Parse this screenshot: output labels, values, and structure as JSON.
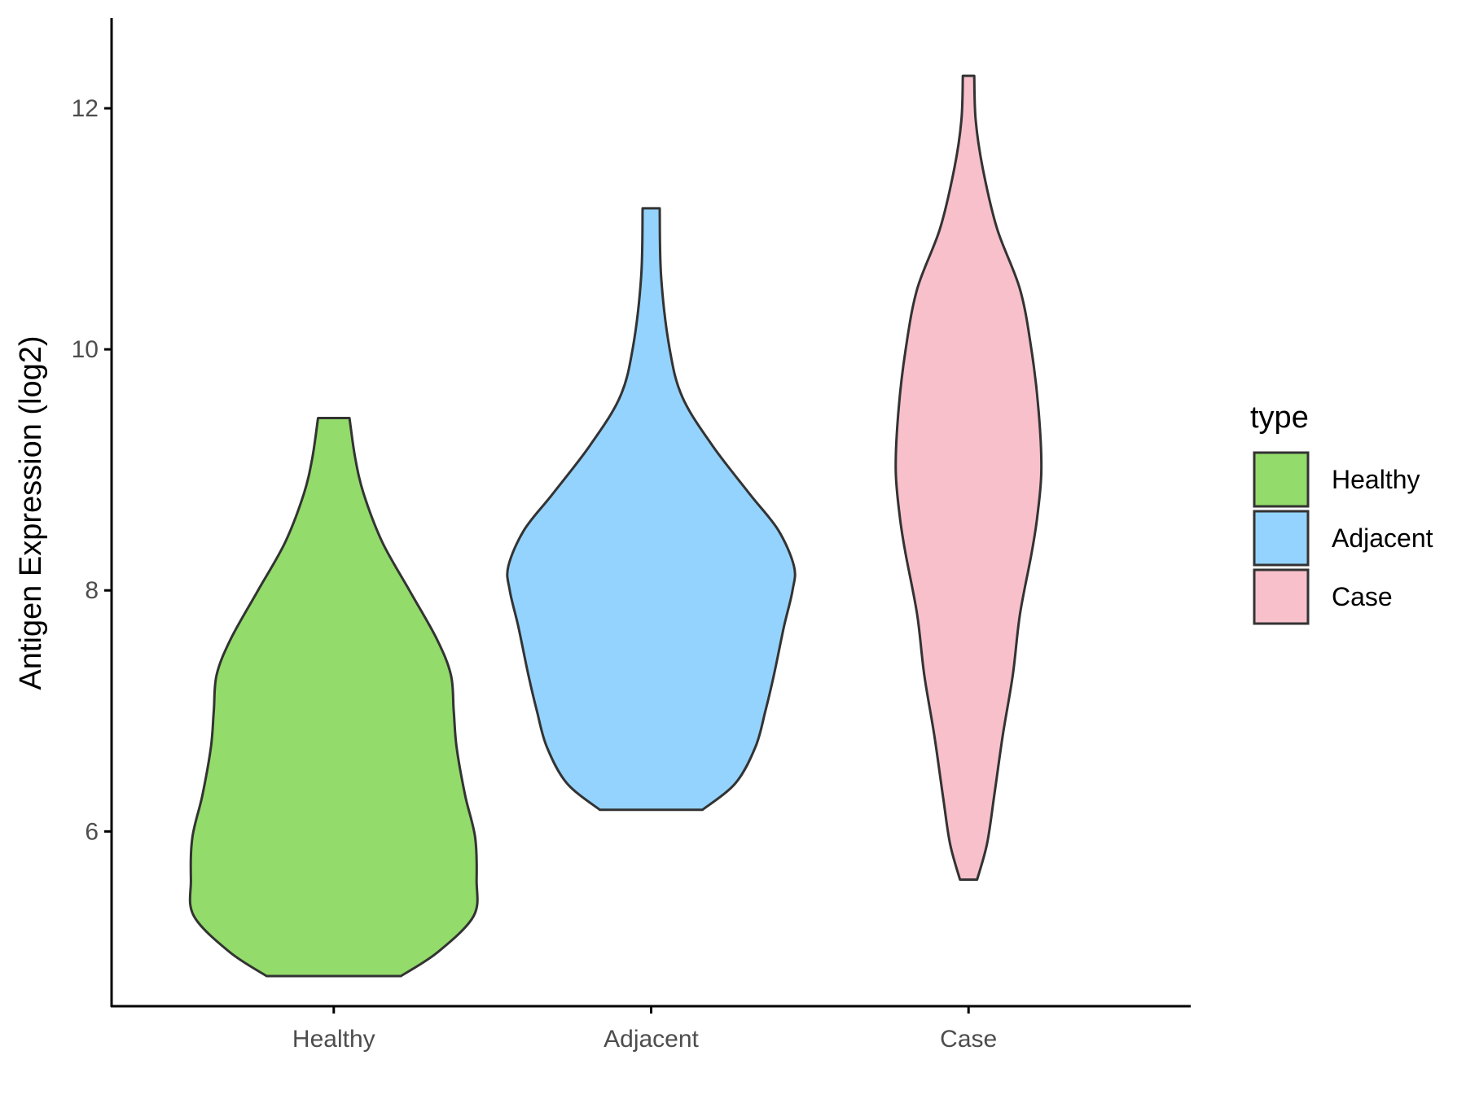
{
  "chart_data": {
    "type": "violin",
    "ylabel": "Antigen Expression (log2)",
    "xlabel": "",
    "categories": [
      "Healthy",
      "Adjacent",
      "Case"
    ],
    "y_ticks": [
      6,
      8,
      10,
      12
    ],
    "ylim": [
      4.55,
      12.75
    ],
    "grid": false,
    "legend": {
      "title": "type",
      "position": "right",
      "entries": [
        "Healthy",
        "Adjacent",
        "Case"
      ]
    },
    "colors": {
      "Healthy": "#93db6a",
      "Adjacent": "#94d3fd",
      "Case": "#f7c0cb",
      "outline": "#333333",
      "axis": "#000000"
    },
    "series": [
      {
        "category": "Healthy",
        "min": 4.8,
        "max": 9.43,
        "density": [
          [
            4.8,
            0.47
          ],
          [
            5.0,
            0.73
          ],
          [
            5.3,
            0.98
          ],
          [
            5.6,
            1.0
          ],
          [
            5.95,
            0.99
          ],
          [
            6.3,
            0.92
          ],
          [
            6.7,
            0.86
          ],
          [
            7.0,
            0.84
          ],
          [
            7.3,
            0.82
          ],
          [
            7.6,
            0.72
          ],
          [
            8.0,
            0.53
          ],
          [
            8.4,
            0.34
          ],
          [
            8.8,
            0.21
          ],
          [
            9.1,
            0.15
          ],
          [
            9.43,
            0.11
          ]
        ]
      },
      {
        "category": "Adjacent",
        "min": 6.18,
        "max": 11.17,
        "density": [
          [
            6.18,
            0.36
          ],
          [
            6.4,
            0.59
          ],
          [
            6.7,
            0.73
          ],
          [
            7.0,
            0.8
          ],
          [
            7.3,
            0.86
          ],
          [
            7.7,
            0.93
          ],
          [
            8.0,
            0.99
          ],
          [
            8.2,
            1.0
          ],
          [
            8.5,
            0.89
          ],
          [
            8.8,
            0.69
          ],
          [
            9.2,
            0.43
          ],
          [
            9.6,
            0.22
          ],
          [
            10.0,
            0.13
          ],
          [
            10.6,
            0.07
          ],
          [
            11.17,
            0.06
          ]
        ]
      },
      {
        "category": "Case",
        "min": 5.6,
        "max": 12.27,
        "density": [
          [
            5.6,
            0.06
          ],
          [
            5.9,
            0.13
          ],
          [
            6.3,
            0.18
          ],
          [
            6.8,
            0.24
          ],
          [
            7.3,
            0.31
          ],
          [
            7.8,
            0.36
          ],
          [
            8.3,
            0.44
          ],
          [
            8.6,
            0.48
          ],
          [
            9.0,
            0.51
          ],
          [
            9.5,
            0.49
          ],
          [
            10.0,
            0.44
          ],
          [
            10.5,
            0.36
          ],
          [
            11.0,
            0.2
          ],
          [
            11.5,
            0.1
          ],
          [
            11.9,
            0.05
          ],
          [
            12.27,
            0.04
          ]
        ]
      }
    ]
  }
}
